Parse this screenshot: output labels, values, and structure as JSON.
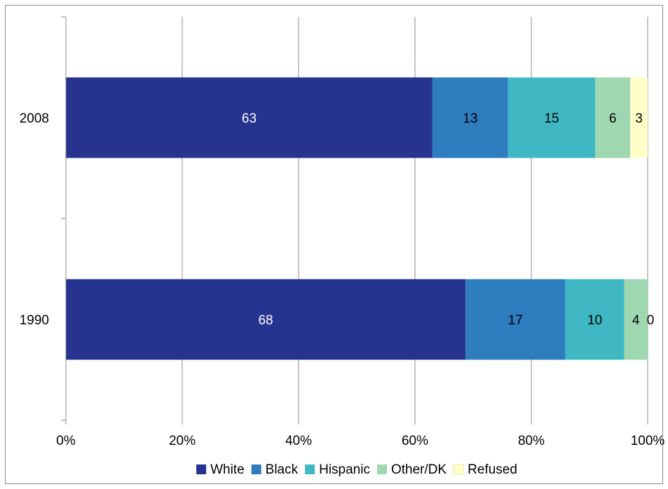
{
  "chart_data": {
    "type": "bar",
    "orientation": "horizontal",
    "stacked": "percent",
    "title": "",
    "xlabel": "",
    "ylabel": "",
    "categories": [
      "2008",
      "1990"
    ],
    "x_ticks": [
      "0%",
      "20%",
      "40%",
      "60%",
      "80%",
      "100%"
    ],
    "xlim": [
      0,
      100
    ],
    "grid": "vertical",
    "legend": "bottom",
    "series": [
      {
        "name": "White",
        "color": "#26338f",
        "label_color": "#ffffff",
        "values": [
          63,
          68
        ]
      },
      {
        "name": "Black",
        "color": "#2e7dbf",
        "label_color": "#000000",
        "values": [
          13,
          17
        ]
      },
      {
        "name": "Hispanic",
        "color": "#3fb8c3",
        "label_color": "#000000",
        "values": [
          15,
          10
        ]
      },
      {
        "name": "Other/DK",
        "color": "#9fd8b0",
        "label_color": "#000000",
        "values": [
          6,
          4
        ]
      },
      {
        "name": "Refused",
        "color": "#ffffc8",
        "label_color": "#000000",
        "values": [
          3,
          0
        ]
      }
    ]
  }
}
